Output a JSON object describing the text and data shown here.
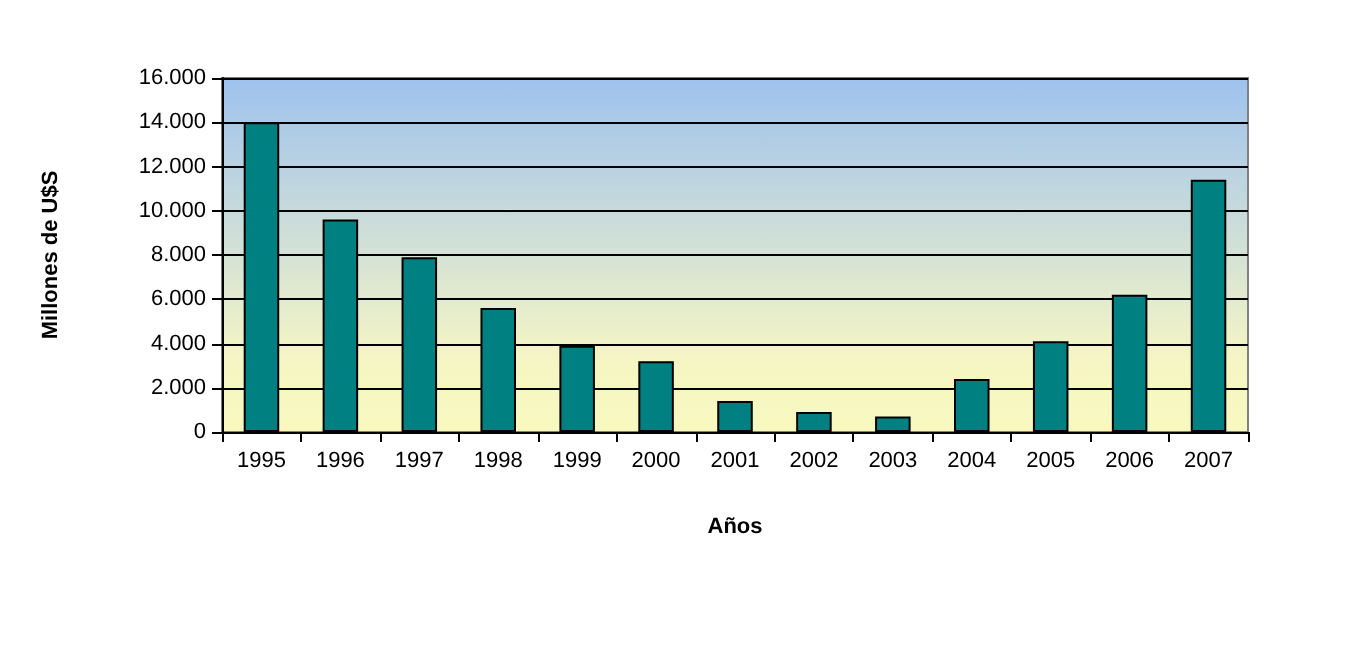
{
  "chart_data": {
    "type": "bar",
    "xlabel": "Años",
    "ylabel": "Millones de U$S",
    "categories": [
      "1995",
      "1996",
      "1997",
      "1998",
      "1999",
      "2000",
      "2001",
      "2002",
      "2003",
      "2004",
      "2005",
      "2006",
      "2007"
    ],
    "values": [
      14000,
      9600,
      7900,
      5600,
      3900,
      3200,
      1400,
      900,
      700,
      2400,
      4100,
      6200,
      11400
    ],
    "color": "#008080",
    "ylim": [
      0,
      16000
    ],
    "yticks": [
      {
        "value": 0,
        "label": "0"
      },
      {
        "value": 2000,
        "label": "2.000"
      },
      {
        "value": 4000,
        "label": "4.000"
      },
      {
        "value": 6000,
        "label": "6.000"
      },
      {
        "value": 8000,
        "label": "8.000"
      },
      {
        "value": 10000,
        "label": "10.000"
      },
      {
        "value": 12000,
        "label": "12.000"
      },
      {
        "value": 14000,
        "label": "14.000"
      },
      {
        "value": 16000,
        "label": "16.000"
      }
    ],
    "grid": "y"
  }
}
